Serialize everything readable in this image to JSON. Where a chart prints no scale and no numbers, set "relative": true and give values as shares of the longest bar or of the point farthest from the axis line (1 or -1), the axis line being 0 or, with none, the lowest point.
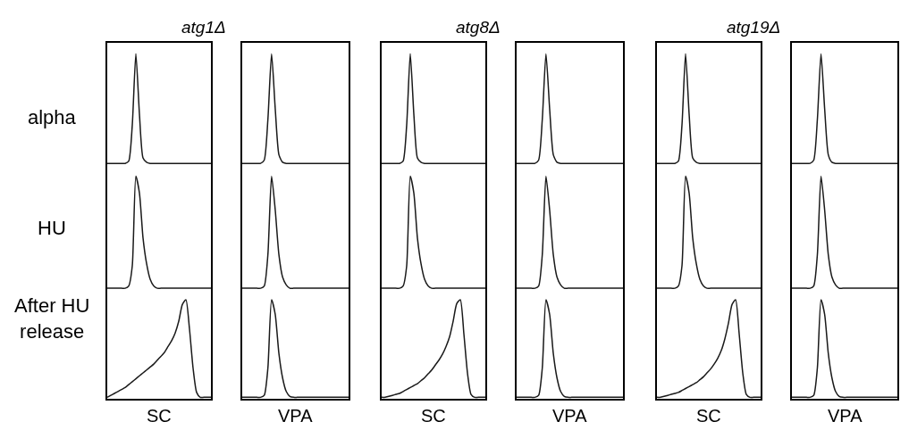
{
  "chart_data": [
    {
      "type": "line",
      "relative": true,
      "title": "atg1Δ",
      "ylabel": "alpha",
      "color": "#1a1a1a",
      "categories": [
        null,
        null,
        null,
        null,
        null,
        null,
        null,
        null,
        null,
        null,
        null,
        null,
        null,
        null,
        null,
        null,
        null,
        null,
        null,
        null,
        null,
        null,
        null,
        null,
        null,
        null,
        null,
        null,
        null,
        null
      ],
      "values": [
        0,
        0,
        0,
        0,
        0,
        0,
        0.02,
        0.35,
        1,
        0.45,
        0.05,
        0.01,
        0,
        0,
        0,
        0,
        0,
        0,
        0,
        0,
        0,
        0,
        0,
        0,
        0,
        0,
        0,
        0,
        0,
        0
      ]
    },
    {
      "type": "line",
      "relative": true,
      "color": "#1a1a1a",
      "categories": [
        null,
        null,
        null,
        null,
        null,
        null,
        null,
        null,
        null,
        null,
        null,
        null,
        null,
        null,
        null,
        null,
        null,
        null,
        null,
        null,
        null,
        null,
        null,
        null,
        null,
        null,
        null,
        null,
        null,
        null
      ],
      "values": [
        0,
        0,
        0,
        0,
        0,
        0,
        0.03,
        0.4,
        1,
        0.5,
        0.08,
        0.01,
        0,
        0,
        0,
        0,
        0,
        0,
        0,
        0,
        0,
        0,
        0,
        0,
        0,
        0,
        0,
        0,
        0,
        0
      ]
    },
    {
      "type": "line",
      "relative": true,
      "title": "atg8Δ",
      "color": "#1a1a1a",
      "categories": [
        null,
        null,
        null,
        null,
        null,
        null,
        null,
        null,
        null,
        null,
        null,
        null,
        null,
        null,
        null,
        null,
        null,
        null,
        null,
        null,
        null,
        null,
        null,
        null,
        null,
        null,
        null,
        null,
        null,
        null
      ],
      "values": [
        0,
        0,
        0,
        0,
        0,
        0,
        0.02,
        0.35,
        1,
        0.45,
        0.05,
        0.01,
        0,
        0,
        0,
        0,
        0,
        0,
        0,
        0,
        0,
        0,
        0,
        0,
        0,
        0,
        0,
        0,
        0,
        0
      ]
    },
    {
      "type": "line",
      "relative": true,
      "color": "#1a1a1a",
      "categories": [
        null,
        null,
        null,
        null,
        null,
        null,
        null,
        null,
        null,
        null,
        null,
        null,
        null,
        null,
        null,
        null,
        null,
        null,
        null,
        null,
        null,
        null,
        null,
        null,
        null,
        null,
        null,
        null,
        null,
        null
      ],
      "values": [
        0,
        0,
        0,
        0,
        0,
        0,
        0.03,
        0.4,
        1,
        0.5,
        0.08,
        0.01,
        0,
        0,
        0,
        0,
        0,
        0,
        0,
        0,
        0,
        0,
        0,
        0,
        0,
        0,
        0,
        0,
        0,
        0
      ]
    },
    {
      "type": "line",
      "relative": true,
      "title": "atg19Δ",
      "color": "#1a1a1a",
      "categories": [
        null,
        null,
        null,
        null,
        null,
        null,
        null,
        null,
        null,
        null,
        null,
        null,
        null,
        null,
        null,
        null,
        null,
        null,
        null,
        null,
        null,
        null,
        null,
        null,
        null,
        null,
        null,
        null,
        null,
        null
      ],
      "values": [
        0,
        0,
        0,
        0,
        0,
        0,
        0.02,
        0.35,
        1,
        0.45,
        0.05,
        0.01,
        0,
        0,
        0,
        0,
        0,
        0,
        0,
        0,
        0,
        0,
        0,
        0,
        0,
        0,
        0,
        0,
        0,
        0
      ]
    },
    {
      "type": "line",
      "relative": true,
      "color": "#1a1a1a",
      "categories": [
        null,
        null,
        null,
        null,
        null,
        null,
        null,
        null,
        null,
        null,
        null,
        null,
        null,
        null,
        null,
        null,
        null,
        null,
        null,
        null,
        null,
        null,
        null,
        null,
        null,
        null,
        null,
        null,
        null,
        null
      ],
      "values": [
        0,
        0,
        0,
        0,
        0,
        0,
        0.03,
        0.4,
        1,
        0.5,
        0.08,
        0.01,
        0,
        0,
        0,
        0,
        0,
        0,
        0,
        0,
        0,
        0,
        0,
        0,
        0,
        0,
        0,
        0,
        0,
        0
      ]
    },
    {
      "type": "line",
      "relative": true,
      "ylabel": "HU",
      "color": "#1a1a1a",
      "categories": [
        null,
        null,
        null,
        null,
        null,
        null,
        null,
        null,
        null,
        null,
        null,
        null,
        null,
        null,
        null,
        null,
        null,
        null,
        null,
        null,
        null,
        null,
        null,
        null,
        null,
        null,
        null,
        null,
        null,
        null
      ],
      "values": [
        0,
        0,
        0,
        0,
        0,
        0,
        0.02,
        0.2,
        1,
        0.85,
        0.45,
        0.22,
        0.08,
        0.02,
        0,
        0,
        0,
        0,
        0,
        0,
        0,
        0,
        0,
        0,
        0,
        0,
        0,
        0,
        0,
        0
      ]
    },
    {
      "type": "line",
      "relative": true,
      "color": "#1a1a1a",
      "categories": [
        null,
        null,
        null,
        null,
        null,
        null,
        null,
        null,
        null,
        null,
        null,
        null,
        null,
        null,
        null,
        null,
        null,
        null,
        null,
        null,
        null,
        null,
        null,
        null,
        null,
        null,
        null,
        null,
        null,
        null
      ],
      "values": [
        0,
        0,
        0,
        0,
        0,
        0,
        0.02,
        0.3,
        1,
        0.7,
        0.3,
        0.1,
        0.03,
        0,
        0,
        0,
        0,
        0,
        0,
        0,
        0,
        0,
        0,
        0,
        0,
        0,
        0,
        0,
        0,
        0
      ]
    },
    {
      "type": "line",
      "relative": true,
      "color": "#1a1a1a",
      "categories": [
        null,
        null,
        null,
        null,
        null,
        null,
        null,
        null,
        null,
        null,
        null,
        null,
        null,
        null,
        null,
        null,
        null,
        null,
        null,
        null,
        null,
        null,
        null,
        null,
        null,
        null,
        null,
        null,
        null,
        null
      ],
      "values": [
        0,
        0,
        0,
        0,
        0,
        0,
        0.02,
        0.2,
        1,
        0.85,
        0.45,
        0.22,
        0.08,
        0.02,
        0,
        0,
        0,
        0,
        0,
        0,
        0,
        0,
        0,
        0,
        0,
        0,
        0,
        0,
        0,
        0
      ]
    },
    {
      "type": "line",
      "relative": true,
      "color": "#1a1a1a",
      "categories": [
        null,
        null,
        null,
        null,
        null,
        null,
        null,
        null,
        null,
        null,
        null,
        null,
        null,
        null,
        null,
        null,
        null,
        null,
        null,
        null,
        null,
        null,
        null,
        null,
        null,
        null,
        null,
        null,
        null,
        null
      ],
      "values": [
        0,
        0,
        0,
        0,
        0,
        0,
        0.02,
        0.3,
        1,
        0.7,
        0.3,
        0.1,
        0.03,
        0,
        0,
        0,
        0,
        0,
        0,
        0,
        0,
        0,
        0,
        0,
        0,
        0,
        0,
        0,
        0,
        0
      ]
    },
    {
      "type": "line",
      "relative": true,
      "color": "#1a1a1a",
      "categories": [
        null,
        null,
        null,
        null,
        null,
        null,
        null,
        null,
        null,
        null,
        null,
        null,
        null,
        null,
        null,
        null,
        null,
        null,
        null,
        null,
        null,
        null,
        null,
        null,
        null,
        null,
        null,
        null,
        null,
        null
      ],
      "values": [
        0,
        0,
        0,
        0,
        0,
        0,
        0.02,
        0.2,
        1,
        0.85,
        0.45,
        0.22,
        0.08,
        0.02,
        0,
        0,
        0,
        0,
        0,
        0,
        0,
        0,
        0,
        0,
        0,
        0,
        0,
        0,
        0,
        0
      ]
    },
    {
      "type": "line",
      "relative": true,
      "color": "#1a1a1a",
      "categories": [
        null,
        null,
        null,
        null,
        null,
        null,
        null,
        null,
        null,
        null,
        null,
        null,
        null,
        null,
        null,
        null,
        null,
        null,
        null,
        null,
        null,
        null,
        null,
        null,
        null,
        null,
        null,
        null,
        null,
        null
      ],
      "values": [
        0,
        0,
        0,
        0,
        0,
        0,
        0.02,
        0.3,
        1,
        0.7,
        0.3,
        0.1,
        0.03,
        0,
        0,
        0,
        0,
        0,
        0,
        0,
        0,
        0,
        0,
        0,
        0,
        0,
        0,
        0,
        0,
        0
      ]
    },
    {
      "type": "line",
      "relative": true,
      "ylabel": "After HU release",
      "xlabel": "SC",
      "color": "#1a1a1a",
      "categories": [
        null,
        null,
        null,
        null,
        null,
        null,
        null,
        null,
        null,
        null,
        null,
        null,
        null,
        null,
        null,
        null,
        null,
        null,
        null,
        null,
        null,
        null,
        null,
        null,
        null,
        null,
        null,
        null,
        null,
        null
      ],
      "values": [
        0,
        0.02,
        0.04,
        0.06,
        0.08,
        0.1,
        0.13,
        0.16,
        0.19,
        0.22,
        0.25,
        0.28,
        0.31,
        0.34,
        0.38,
        0.42,
        0.46,
        0.52,
        0.58,
        0.66,
        0.78,
        0.95,
        1,
        0.7,
        0.3,
        0.05,
        0,
        0,
        0,
        0
      ]
    },
    {
      "type": "line",
      "relative": true,
      "xlabel": "VPA",
      "color": "#1a1a1a",
      "categories": [
        null,
        null,
        null,
        null,
        null,
        null,
        null,
        null,
        null,
        null,
        null,
        null,
        null,
        null,
        null,
        null,
        null,
        null,
        null,
        null,
        null,
        null,
        null,
        null,
        null,
        null,
        null,
        null,
        null,
        null
      ],
      "values": [
        0,
        0,
        0,
        0,
        0,
        0,
        0.02,
        0.3,
        1,
        0.85,
        0.45,
        0.2,
        0.06,
        0.01,
        0,
        0,
        0,
        0,
        0,
        0,
        0,
        0,
        0,
        0,
        0,
        0,
        0,
        0,
        0,
        0
      ]
    },
    {
      "type": "line",
      "relative": true,
      "xlabel": "SC",
      "color": "#1a1a1a",
      "categories": [
        null,
        null,
        null,
        null,
        null,
        null,
        null,
        null,
        null,
        null,
        null,
        null,
        null,
        null,
        null,
        null,
        null,
        null,
        null,
        null,
        null,
        null,
        null,
        null,
        null,
        null,
        null,
        null,
        null,
        null
      ],
      "values": [
        0,
        0,
        0.01,
        0.02,
        0.03,
        0.04,
        0.06,
        0.08,
        0.1,
        0.12,
        0.14,
        0.17,
        0.2,
        0.24,
        0.28,
        0.33,
        0.38,
        0.44,
        0.52,
        0.62,
        0.78,
        0.96,
        1,
        0.65,
        0.25,
        0.03,
        0,
        0,
        0,
        0
      ]
    },
    {
      "type": "line",
      "relative": true,
      "xlabel": "VPA",
      "color": "#1a1a1a",
      "categories": [
        null,
        null,
        null,
        null,
        null,
        null,
        null,
        null,
        null,
        null,
        null,
        null,
        null,
        null,
        null,
        null,
        null,
        null,
        null,
        null,
        null,
        null,
        null,
        null,
        null,
        null,
        null,
        null,
        null,
        null
      ],
      "values": [
        0,
        0,
        0,
        0,
        0,
        0,
        0.02,
        0.3,
        1,
        0.85,
        0.45,
        0.2,
        0.06,
        0.01,
        0,
        0,
        0,
        0,
        0,
        0,
        0,
        0,
        0,
        0,
        0,
        0,
        0,
        0,
        0,
        0
      ]
    },
    {
      "type": "line",
      "relative": true,
      "xlabel": "SC",
      "color": "#1a1a1a",
      "categories": [
        null,
        null,
        null,
        null,
        null,
        null,
        null,
        null,
        null,
        null,
        null,
        null,
        null,
        null,
        null,
        null,
        null,
        null,
        null,
        null,
        null,
        null,
        null,
        null,
        null,
        null,
        null,
        null,
        null,
        null
      ],
      "values": [
        0,
        0,
        0.01,
        0.02,
        0.03,
        0.04,
        0.05,
        0.07,
        0.09,
        0.11,
        0.13,
        0.15,
        0.18,
        0.21,
        0.25,
        0.29,
        0.34,
        0.4,
        0.48,
        0.6,
        0.76,
        0.95,
        1,
        0.65,
        0.25,
        0.03,
        0,
        0,
        0,
        0
      ]
    },
    {
      "type": "line",
      "relative": true,
      "xlabel": "VPA",
      "color": "#1a1a1a",
      "categories": [
        null,
        null,
        null,
        null,
        null,
        null,
        null,
        null,
        null,
        null,
        null,
        null,
        null,
        null,
        null,
        null,
        null,
        null,
        null,
        null,
        null,
        null,
        null,
        null,
        null,
        null,
        null,
        null,
        null,
        null
      ],
      "values": [
        0,
        0,
        0,
        0,
        0,
        0,
        0.02,
        0.3,
        1,
        0.85,
        0.45,
        0.2,
        0.06,
        0.01,
        0,
        0,
        0,
        0,
        0,
        0,
        0,
        0,
        0,
        0,
        0,
        0,
        0,
        0,
        0,
        0
      ]
    }
  ]
}
